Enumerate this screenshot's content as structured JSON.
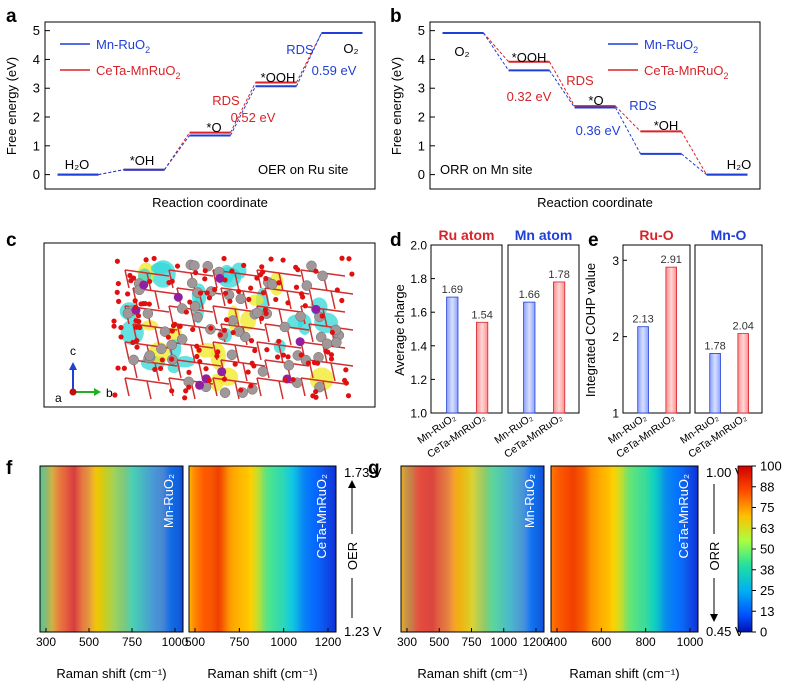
{
  "colors": {
    "mn": "#1f3fd6",
    "ce": "#d6242a"
  },
  "legend": {
    "mn": {
      "main": "Mn-RuO",
      "sub": "2"
    },
    "ce": {
      "main": "CeTa-MnRuO",
      "sub": "2"
    }
  },
  "chart_data": [
    {
      "panel": "a",
      "type": "line",
      "title": "",
      "note": "OER on Ru site",
      "xlabel": "Reaction coordinate",
      "ylabel": "Free energy (eV)",
      "ylim": [
        -0.5,
        5.3
      ],
      "yticks": [
        0,
        1,
        2,
        3,
        4,
        5
      ],
      "steps": [
        {
          "label": "H₂O",
          "mn": 0.0,
          "ce": 0.0
        },
        {
          "label": "*OH",
          "mn": 0.17,
          "ce": 0.17
        },
        {
          "label": "*O",
          "mn": 1.36,
          "ce": 1.46
        },
        {
          "label": "*OOH",
          "mn": 3.07,
          "ce": 3.2
        },
        {
          "label": "O₂",
          "mn": 4.92,
          "ce": 4.92
        }
      ],
      "annotations": [
        {
          "text": "RDS",
          "color": "ce"
        },
        {
          "text": "0.52 eV",
          "color": "ce"
        },
        {
          "text": "RDS",
          "color": "mn"
        },
        {
          "text": "0.59 eV",
          "color": "mn"
        }
      ]
    },
    {
      "panel": "b",
      "type": "line",
      "title": "",
      "note": "ORR on Mn site",
      "xlabel": "Reaction coordinate",
      "ylabel": "Free energy (eV)",
      "ylim": [
        -0.5,
        5.3
      ],
      "yticks": [
        0,
        1,
        2,
        3,
        4,
        5
      ],
      "steps": [
        {
          "label": "O₂",
          "mn": 4.92,
          "ce": 4.92
        },
        {
          "label": "*OOH",
          "mn": 3.62,
          "ce": 3.92
        },
        {
          "label": "*O",
          "mn": 2.33,
          "ce": 2.38
        },
        {
          "label": "*OH",
          "mn": 0.72,
          "ce": 1.5
        },
        {
          "label": "H₂O",
          "mn": 0.0,
          "ce": 0.0
        }
      ],
      "annotations": [
        {
          "text": "RDS",
          "color": "ce"
        },
        {
          "text": "0.32 eV",
          "color": "ce"
        },
        {
          "text": "RDS",
          "color": "mn"
        },
        {
          "text": "0.36 eV",
          "color": "mn"
        }
      ]
    },
    {
      "panel": "d",
      "type": "bar",
      "ylabel": "Average charge",
      "ylim": [
        1.0,
        2.0
      ],
      "yticks": [
        "1.0",
        "1.2",
        "1.4",
        "1.6",
        "1.8",
        "2.0"
      ],
      "groups": [
        {
          "title": "Ru atom",
          "title_color": "ce",
          "values": [
            1.69,
            1.54
          ]
        },
        {
          "title": "Mn atom",
          "title_color": "mn",
          "values": [
            1.66,
            1.78
          ]
        }
      ],
      "categories": [
        "Mn-RuO₂",
        "CeTa-MnRuO₂"
      ]
    },
    {
      "panel": "e",
      "type": "bar",
      "ylabel": "Integrated COHP value",
      "ylim": [
        1.0,
        3.2
      ],
      "yticks": [
        "1",
        "2",
        "3"
      ],
      "groups": [
        {
          "title": "Ru-O",
          "title_color": "ce",
          "values": [
            2.13,
            2.91
          ]
        },
        {
          "title": "Mn-O",
          "title_color": "mn",
          "values": [
            1.78,
            2.04
          ]
        }
      ],
      "categories": [
        "Mn-RuO₂",
        "CeTa-MnRuO₂"
      ]
    },
    {
      "panel": "f",
      "type": "heatmap",
      "side_label": "OER",
      "v_top": "1.73 V",
      "v_bottom": "1.23 V",
      "maps": [
        {
          "sample": "Mn-RuO₂",
          "xlabel": "Raman shift (cm⁻¹)",
          "xticks": [
            "300",
            "500",
            "750",
            "1000"
          ]
        },
        {
          "sample": "CeTa-MnRuO₂",
          "xlabel": "Raman shift (cm⁻¹)",
          "xticks": [
            "500",
            "750",
            "1000",
            "1200"
          ]
        }
      ]
    },
    {
      "panel": "g",
      "type": "heatmap",
      "side_label": "ORR",
      "v_top": "1.00 V",
      "v_bottom": "0.45 V",
      "maps": [
        {
          "sample": "Mn-RuO₂",
          "xlabel": "Raman shift (cm⁻¹)",
          "xticks": [
            "300",
            "500",
            "750",
            "1000",
            "1200"
          ]
        },
        {
          "sample": "CeTa-MnRuO₂",
          "xlabel": "Raman shift (cm⁻¹)",
          "xticks": [
            "400",
            "600",
            "800",
            "1000"
          ]
        }
      ],
      "colorbar": {
        "ticks": [
          "100",
          "88",
          "75",
          "63",
          "50",
          "38",
          "25",
          "13",
          "0"
        ]
      }
    }
  ],
  "panel_c": {
    "axes": {
      "c": "c",
      "a": "a",
      "b": "b"
    }
  }
}
